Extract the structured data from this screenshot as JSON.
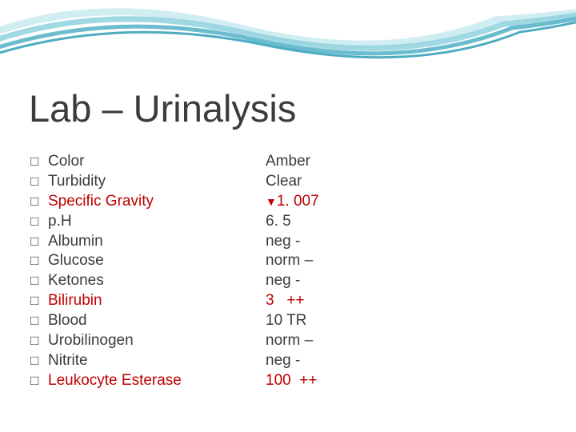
{
  "title": "Lab – Urinalysis",
  "colors": {
    "text_normal": "#3b3b3b",
    "text_abnormal": "#c00000",
    "background": "#ffffff",
    "wave_stroke1": "#5ab5c9",
    "wave_stroke2": "#8fd1de",
    "wave_stroke3": "#c4e8ee"
  },
  "typography": {
    "title_fontsize": 47,
    "body_fontsize": 19,
    "font_family": "Verdana"
  },
  "bullet_glyph": "□",
  "down_marker": "▼",
  "rows": [
    {
      "label": "Color",
      "value": "Amber",
      "abnormal": false,
      "marker": "",
      "suffix": ""
    },
    {
      "label": "Turbidity",
      "value": "Clear",
      "abnormal": false,
      "marker": "",
      "suffix": ""
    },
    {
      "label": "Specific Gravity",
      "value": "1. 007",
      "abnormal": true,
      "marker": "down",
      "suffix": ""
    },
    {
      "label": "p.H",
      "value": "6. 5",
      "abnormal": false,
      "marker": "",
      "suffix": ""
    },
    {
      "label": "Albumin",
      "value": "neg  -",
      "abnormal": false,
      "marker": "",
      "suffix": ""
    },
    {
      "label": "Glucose",
      "value": "norm –",
      "abnormal": false,
      "marker": "",
      "suffix": ""
    },
    {
      "label": "Ketones",
      "value": "neg  -",
      "abnormal": false,
      "marker": "",
      "suffix": ""
    },
    {
      "label": "Bilirubin",
      "value": "3",
      "abnormal": true,
      "marker": "",
      "suffix": "   ++"
    },
    {
      "label": "Blood",
      "value": "10   TR",
      "abnormal": false,
      "marker": "",
      "suffix": ""
    },
    {
      "label": "Urobilinogen",
      "value": "norm –",
      "abnormal": false,
      "marker": "",
      "suffix": ""
    },
    {
      "label": "Nitrite",
      "value": "neg  -",
      "abnormal": false,
      "marker": "",
      "suffix": ""
    },
    {
      "label": "Leukocyte Esterase",
      "value": "100",
      "abnormal": true,
      "marker": "",
      "suffix": "  ++"
    }
  ]
}
